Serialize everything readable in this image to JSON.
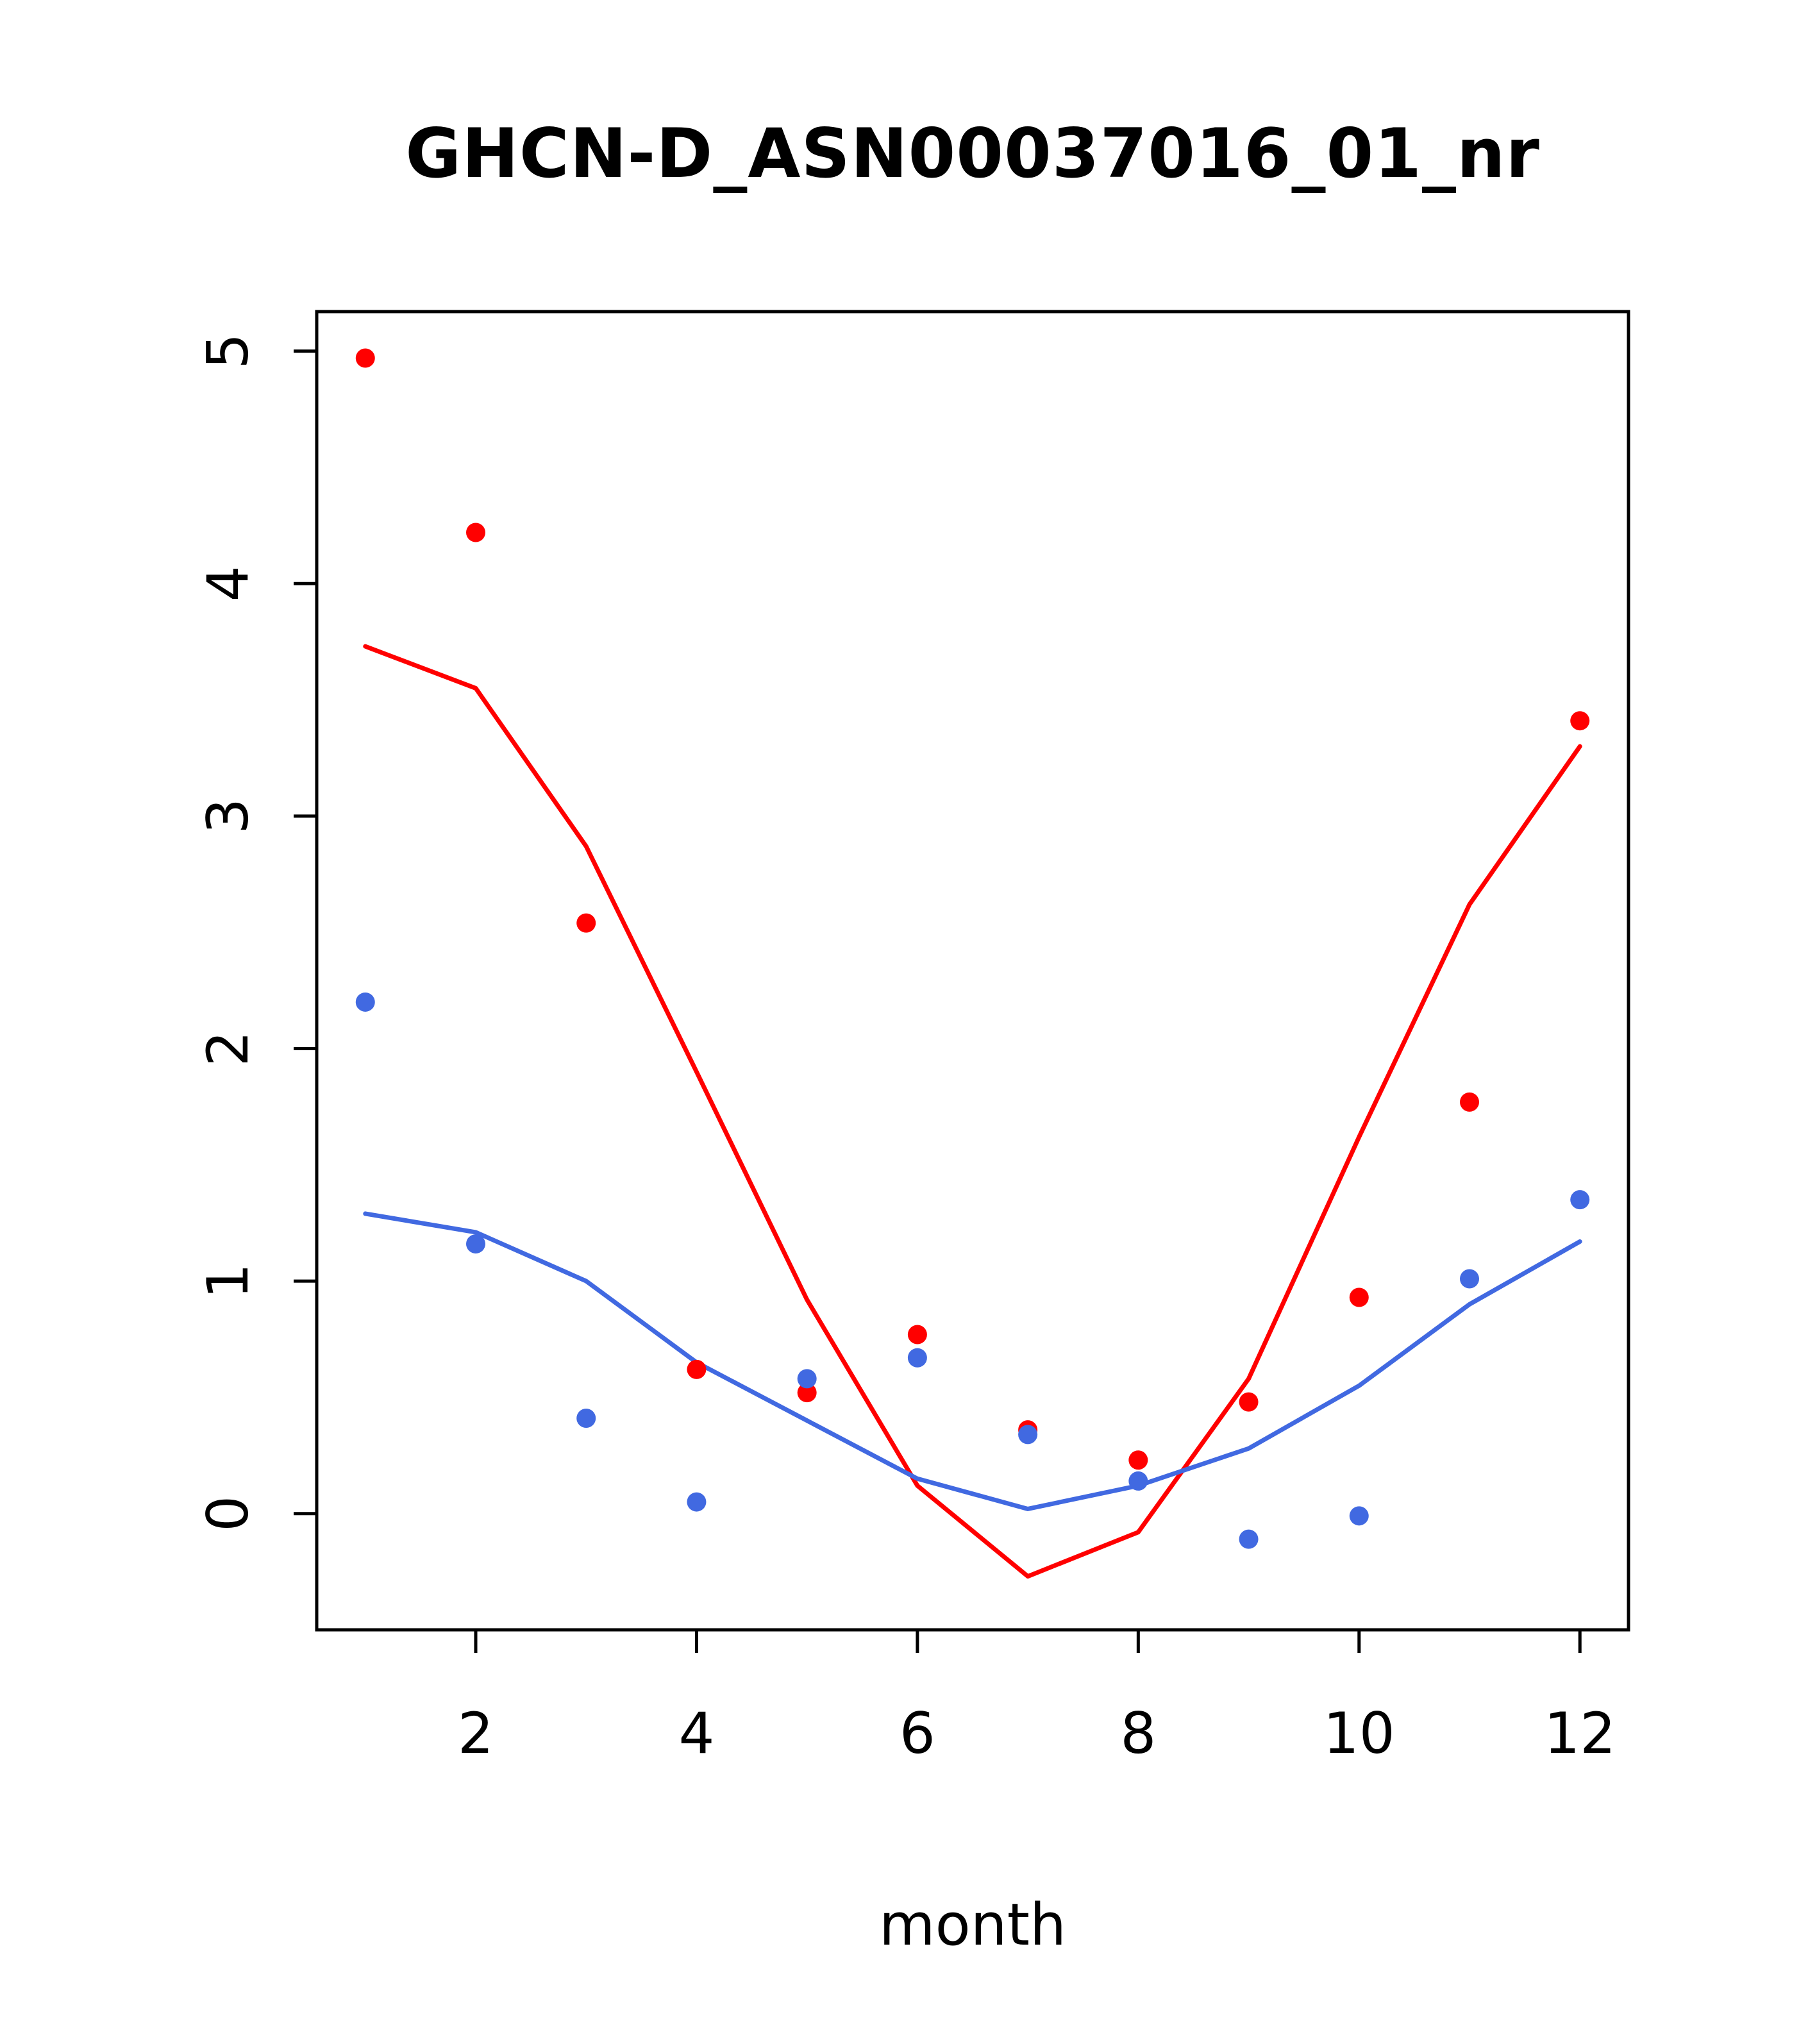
{
  "chart_data": {
    "type": "line",
    "title": "GHCN-D_ASN00037016_01_nr",
    "xlabel": "month",
    "ylabel": "",
    "x": [
      1,
      2,
      3,
      4,
      5,
      6,
      7,
      8,
      9,
      10,
      11,
      12
    ],
    "xlim": [
      0.56,
      12.44
    ],
    "ylim": [
      -0.5,
      5.17
    ],
    "x_ticks": [
      2,
      4,
      6,
      8,
      10,
      12
    ],
    "y_ticks": [
      0,
      1,
      2,
      3,
      4,
      5
    ],
    "grid": false,
    "legend": "none",
    "series": [
      {
        "name": "red-points",
        "type": "scatter",
        "color": "#FF0000",
        "values": [
          4.97,
          4.22,
          2.54,
          0.62,
          0.52,
          0.77,
          0.36,
          0.23,
          0.48,
          0.93,
          1.77,
          3.41
        ]
      },
      {
        "name": "blue-points",
        "type": "scatter",
        "color": "#4169E1",
        "values": [
          2.2,
          1.16,
          0.41,
          0.05,
          0.58,
          0.67,
          0.34,
          0.14,
          -0.11,
          -0.01,
          1.01,
          1.35
        ]
      },
      {
        "name": "red-line",
        "type": "line",
        "color": "#FF0000",
        "values": [
          3.73,
          3.55,
          2.87,
          1.9,
          0.92,
          0.12,
          -0.27,
          -0.08,
          0.58,
          1.62,
          2.62,
          3.3
        ]
      },
      {
        "name": "blue-line",
        "type": "line",
        "color": "#4169E1",
        "values": [
          1.29,
          1.21,
          1.0,
          0.65,
          0.4,
          0.15,
          0.02,
          0.12,
          0.28,
          0.55,
          0.9,
          1.17
        ]
      }
    ]
  }
}
